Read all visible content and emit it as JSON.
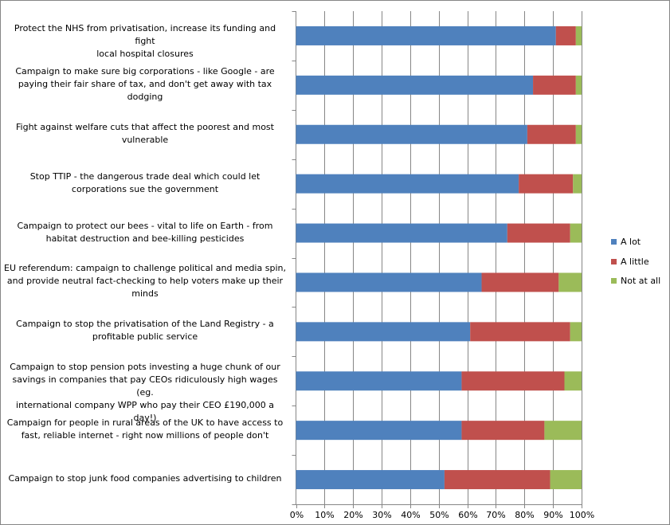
{
  "chart_data": {
    "type": "bar",
    "orientation": "horizontal",
    "stacked": "percent",
    "title": "",
    "xlabel": "",
    "ylabel": "",
    "xlim": [
      0,
      100
    ],
    "x_ticks": [
      "0%",
      "10%",
      "20%",
      "30%",
      "40%",
      "50%",
      "60%",
      "70%",
      "80%",
      "90%",
      "100%"
    ],
    "grid": true,
    "legend_position": "right",
    "categories": [
      "Protect the NHS from privatisation, increase its funding and fight local hospital closures",
      "Campaign to make sure big corporations - like Google - are paying their fair share of tax, and don't get away with tax dodging",
      "Fight against welfare cuts that affect the poorest and most vulnerable",
      "Stop TTIP - the dangerous trade deal which could let corporations sue the government",
      "Campaign to protect our bees - vital to life on Earth - from habitat destruction and bee-killing pesticides",
      "EU referendum: campaign to challenge political and media spin, and provide neutral fact-checking to help voters make up their minds",
      "Campaign to stop the privatisation of the Land Registry - a profitable public service",
      "Campaign to stop pension pots investing a huge chunk of our savings in companies that pay CEOs ridiculously high wages (eg. international company WPP who pay their CEO £190,000 a day!)",
      "Campaign for people in rural areas of the UK to have access to fast, reliable internet - right now millions of people don't",
      "Campaign to stop junk food companies advertising to children"
    ],
    "category_lines": [
      [
        "Protect the NHS from privatisation, increase its funding and fight",
        "local hospital closures"
      ],
      [
        "Campaign to make sure big corporations - like Google - are",
        "paying their fair share of tax, and don't get away with tax",
        "dodging"
      ],
      [
        "Fight against welfare cuts that affect the poorest and most",
        "vulnerable"
      ],
      [
        "Stop TTIP - the dangerous trade deal which could let",
        "corporations sue the government"
      ],
      [
        "Campaign to protect our bees - vital to life on Earth - from",
        "habitat destruction and bee-killing pesticides"
      ],
      [
        "EU referendum: campaign to challenge political and media spin,",
        "and provide neutral fact-checking to help voters make up their",
        "minds"
      ],
      [
        "Campaign to stop the privatisation of the Land Registry - a",
        "profitable public service"
      ],
      [
        "Campaign to stop pension pots investing a huge chunk of our",
        "savings in companies that pay CEOs ridiculously high wages (eg.",
        "international company WPP who pay their CEO £190,000 a day!)"
      ],
      [
        "Campaign for people in rural areas of the UK to have access to",
        "fast, reliable internet - right now millions of people don't"
      ],
      [
        "Campaign to stop junk food companies advertising to children"
      ]
    ],
    "series": [
      {
        "name": "A lot",
        "color": "#4f81bd",
        "values": [
          91,
          83,
          81,
          78,
          74,
          65,
          61,
          58,
          58,
          52
        ]
      },
      {
        "name": "A little",
        "color": "#c0504d",
        "values": [
          7,
          15,
          17,
          19,
          22,
          27,
          35,
          36,
          29,
          37
        ]
      },
      {
        "name": "Not at all",
        "color": "#9bbb59",
        "values": [
          2,
          2,
          2,
          3,
          4,
          8,
          4,
          6,
          13,
          11
        ]
      }
    ],
    "gridline_color": "#868686"
  }
}
